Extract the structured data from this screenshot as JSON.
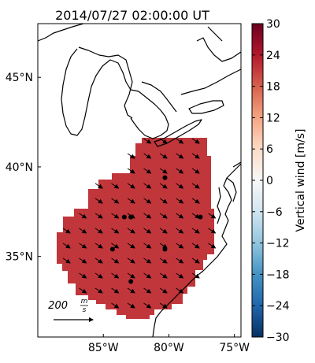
{
  "map": {
    "title": "2014/07/27 02:00:00 UT",
    "lat_ticks": [
      {
        "label": "45°N",
        "value": 45
      },
      {
        "label": "40°N",
        "value": 40
      },
      {
        "label": "35°N",
        "value": 35
      }
    ],
    "lon_ticks": [
      {
        "label": "85°W",
        "value": -85
      },
      {
        "label": "80°W",
        "value": -80
      },
      {
        "label": "75°W",
        "value": -75
      }
    ],
    "extent": {
      "lon_min": -90,
      "lon_max": -74.5,
      "lat_min": 30.5,
      "lat_max": 48
    },
    "field_color": "#c0363a",
    "arrow_color": "#000000",
    "scale_arrow": {
      "label_value": "200",
      "label_unit_num": "m",
      "label_unit_den": "s"
    },
    "stations": [
      {
        "lon": -80.3,
        "lat": 39.4
      },
      {
        "lon": -83.4,
        "lat": 37.2
      },
      {
        "lon": -82.9,
        "lat": 37.2
      },
      {
        "lon": -77.6,
        "lat": 37.2
      },
      {
        "lon": -84.3,
        "lat": 35.4
      },
      {
        "lon": -80.3,
        "lat": 35.4
      },
      {
        "lon": -82.9,
        "lat": 33.6
      }
    ]
  },
  "colorbar": {
    "label": "Vertical wind [m/s]",
    "min": -30,
    "max": 30,
    "ticks": [
      "30",
      "24",
      "18",
      "12",
      "6",
      "0",
      "−6",
      "−12",
      "−18",
      "−24",
      "−30"
    ],
    "colors": [
      "#6b0020",
      "#b2182b",
      "#d6604d",
      "#f4a582",
      "#fddbc7",
      "#f7f7f7",
      "#d1e5f0",
      "#92c5de",
      "#4393c3",
      "#2166ac",
      "#053061"
    ]
  }
}
